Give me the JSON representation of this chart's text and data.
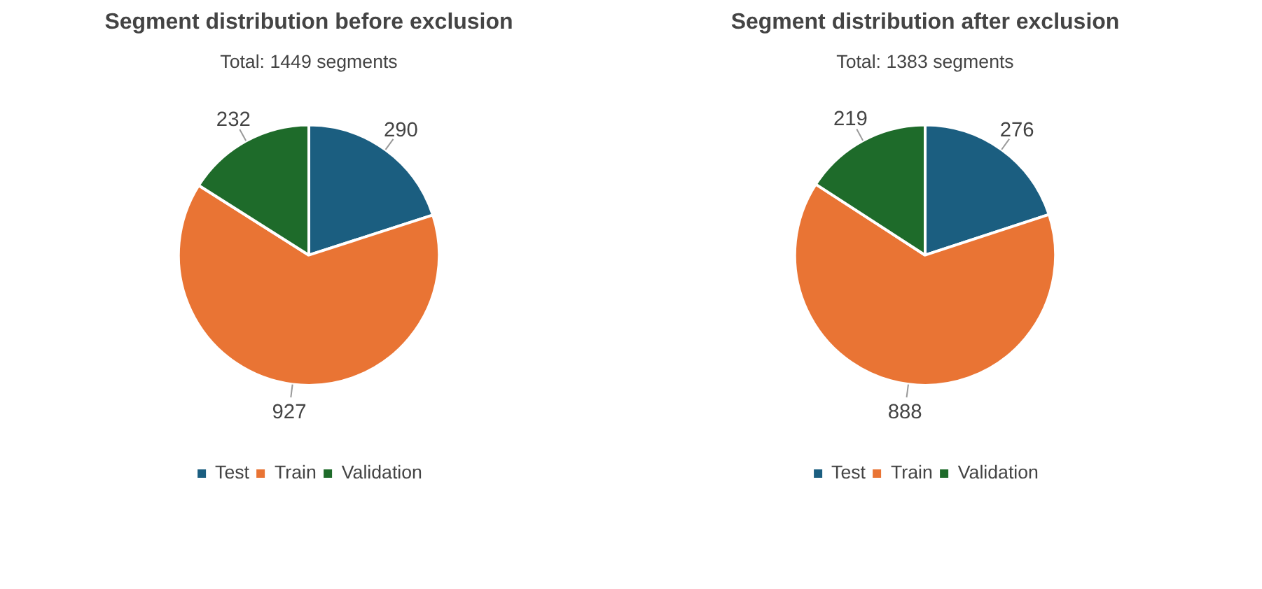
{
  "chart_data": [
    {
      "type": "pie",
      "title": "Segment distribution before exclusion",
      "subtitle": "Total: 1449 segments",
      "categories": [
        "Test",
        "Train",
        "Validation"
      ],
      "values": [
        290,
        927,
        232
      ],
      "colors": [
        "#1b5e80",
        "#e97434",
        "#1e6b2a"
      ],
      "data_labels": true,
      "legend": "bottom"
    },
    {
      "type": "pie",
      "title": "Segment distribution after exclusion",
      "subtitle": "Total: 1383 segments",
      "categories": [
        "Test",
        "Train",
        "Validation"
      ],
      "values": [
        276,
        888,
        219
      ],
      "colors": [
        "#1b5e80",
        "#e97434",
        "#1e6b2a"
      ],
      "data_labels": true,
      "legend": "bottom"
    }
  ]
}
